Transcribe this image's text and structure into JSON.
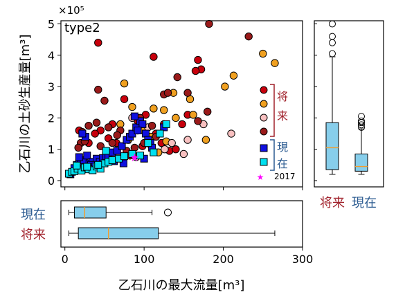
{
  "chart_data": [
    {
      "type": "scatter",
      "panel": "main",
      "annotation": "type2",
      "xlabel": "乙石川の最大流量[m³]",
      "ylabel": "乙石川の土砂生産量[m³]",
      "y_exponent_label": "×10⁵",
      "xlim": [
        -5,
        300
      ],
      "ylim": [
        -0.2,
        5.1
      ],
      "x_ticks": [
        "0",
        "100",
        "200",
        "300"
      ],
      "y_ticks": [
        "0",
        "1",
        "2",
        "3",
        "4",
        "5"
      ],
      "legend": {
        "position": "right",
        "bracket_future": "将来",
        "bracket_present": "現在",
        "marker_2017": "2017"
      },
      "colors": {
        "future": [
          "#c8000c",
          "#f0a020",
          "#f8c0c0",
          "#9a1a1a"
        ],
        "present": [
          "#1010e0",
          "#00e0f0"
        ],
        "marker_2017": "#ff00ff",
        "label_future": "#a0202a",
        "label_present": "#2a5a90"
      },
      "series": [
        {
          "group": "future",
          "color": "#c8000c",
          "points": [
            [
              42,
              4.4
            ],
            [
              18,
              1.6
            ],
            [
              30,
              1.2
            ],
            [
              45,
              1.6
            ],
            [
              60,
              1.8
            ],
            [
              75,
              2.6
            ],
            [
              92,
              1.9
            ],
            [
              102,
              2.1
            ],
            [
              115,
              1.5
            ],
            [
              122,
              1.2
            ],
            [
              132,
              0.95
            ],
            [
              168,
              3.85
            ],
            [
              172,
              3.55
            ],
            [
              155,
              2.1
            ],
            [
              148,
              1.8
            ],
            [
              38,
              1.5
            ],
            [
              55,
              1.35
            ],
            [
              65,
              1.2
            ],
            [
              82,
              0.8
            ],
            [
              98,
              1.1
            ],
            [
              108,
              1.15
            ],
            [
              125,
              1.8
            ],
            [
              140,
              1.0
            ],
            [
              112,
              3.95
            ],
            [
              165,
              3.5
            ]
          ]
        },
        {
          "group": "future",
          "color": "#f0a020",
          "points": [
            [
              75,
              3.1
            ],
            [
              85,
              2.35
            ],
            [
              112,
              2.3
            ],
            [
              137,
              2.8
            ],
            [
              158,
              2.6
            ],
            [
              178,
              1.3
            ],
            [
              202,
              3.0
            ],
            [
              250,
              4.05
            ],
            [
              265,
              3.75
            ],
            [
              92,
              1.6
            ],
            [
              108,
              1.4
            ],
            [
              125,
              2.25
            ],
            [
              70,
              1.8
            ],
            [
              100,
              1.6
            ],
            [
              162,
              2.1
            ],
            [
              118,
              0.9
            ],
            [
              140,
              2.0
            ],
            [
              213,
              3.35
            ],
            [
              80,
              1.3
            ],
            [
              128,
              1.25
            ]
          ]
        },
        {
          "group": "future",
          "color": "#f8c0c0",
          "points": [
            [
              85,
              2.0
            ],
            [
              105,
              1.7
            ],
            [
              135,
              1.2
            ],
            [
              155,
              1.3
            ],
            [
              175,
              1.8
            ],
            [
              210,
              1.5
            ],
            [
              68,
              0.8
            ],
            [
              126,
              1.0
            ],
            [
              150,
              0.85
            ],
            [
              90,
              0.75
            ]
          ]
        },
        {
          "group": "future",
          "color": "#9a1a1a",
          "points": [
            [
              182,
              5.0
            ],
            [
              232,
              4.6
            ],
            [
              180,
              2.2
            ],
            [
              142,
              3.3
            ],
            [
              155,
              2.8
            ],
            [
              168,
              1.9
            ],
            [
              110,
              1.75
            ],
            [
              125,
              2.75
            ],
            [
              130,
              2.8
            ],
            [
              42,
              2.9
            ],
            [
              50,
              2.55
            ],
            [
              40,
              1.85
            ],
            [
              30,
              1.75
            ],
            [
              95,
              2.0
            ],
            [
              70,
              1.6
            ],
            [
              66,
              1.45
            ],
            [
              22,
              1.55
            ],
            [
              115,
              1.4
            ],
            [
              85,
              0.85
            ],
            [
              78,
              0.95
            ],
            [
              60,
              1.2
            ],
            [
              20,
              1.2
            ],
            [
              17,
              1.05
            ],
            [
              25,
              1.25
            ],
            [
              45,
              1.1
            ],
            [
              55,
              1.7
            ],
            [
              100,
              1.2
            ],
            [
              88,
              1.05
            ]
          ]
        },
        {
          "group": "present",
          "color": "#1010e0",
          "points": [
            [
              7,
              0.2
            ],
            [
              12,
              0.4
            ],
            [
              15,
              0.5
            ],
            [
              18,
              0.55
            ],
            [
              20,
              0.6
            ],
            [
              24,
              0.65
            ],
            [
              28,
              0.8
            ],
            [
              31,
              0.55
            ],
            [
              35,
              0.6
            ],
            [
              40,
              0.7
            ],
            [
              44,
              0.6
            ],
            [
              48,
              0.72
            ],
            [
              52,
              0.78
            ],
            [
              55,
              0.8
            ],
            [
              60,
              0.9
            ],
            [
              66,
              0.95
            ],
            [
              72,
              1.1
            ],
            [
              78,
              1.3
            ],
            [
              82,
              1.4
            ],
            [
              85,
              1.5
            ],
            [
              90,
              1.7
            ],
            [
              95,
              1.9
            ],
            [
              98,
              1.8
            ],
            [
              102,
              1.5
            ],
            [
              105,
              1.3
            ],
            [
              108,
              1.2
            ],
            [
              88,
              2.05
            ],
            [
              92,
              1.6
            ],
            [
              26,
              1.4
            ],
            [
              22,
              1.5
            ],
            [
              18,
              0.75
            ],
            [
              33,
              0.5
            ],
            [
              38,
              0.45
            ],
            [
              62,
              0.62
            ],
            [
              74,
              0.55
            ],
            [
              100,
              0.7
            ],
            [
              110,
              1.05
            ],
            [
              125,
              1.7
            ]
          ]
        },
        {
          "group": "present",
          "color": "#00e0f0",
          "points": [
            [
              5,
              0.22
            ],
            [
              9,
              0.28
            ],
            [
              12,
              0.3
            ],
            [
              16,
              0.38
            ],
            [
              21,
              0.32
            ],
            [
              25,
              0.42
            ],
            [
              30,
              0.36
            ],
            [
              35,
              0.33
            ],
            [
              40,
              0.45
            ],
            [
              45,
              0.38
            ],
            [
              50,
              0.55
            ],
            [
              55,
              0.6
            ],
            [
              60,
              0.65
            ],
            [
              68,
              0.7
            ],
            [
              75,
              0.78
            ],
            [
              85,
              0.85
            ],
            [
              95,
              0.8
            ],
            [
              105,
              1.2
            ],
            [
              112,
              0.9
            ],
            [
              120,
              1.5
            ],
            [
              128,
              1.8
            ],
            [
              15,
              0.48
            ],
            [
              28,
              0.44
            ],
            [
              42,
              0.5
            ],
            [
              52,
              0.95
            ]
          ]
        },
        {
          "group": "2017",
          "color": "#ff00ff",
          "points": [
            [
              88,
              0.75
            ]
          ]
        }
      ]
    },
    {
      "type": "box",
      "panel": "right",
      "orientation": "vertical",
      "ylim": [
        -0.2,
        5.1
      ],
      "categories": [
        "将来",
        "現在"
      ],
      "boxes": [
        {
          "name": "将来",
          "whisker_low": 0.2,
          "q1": 0.35,
          "median": 1.05,
          "q3": 1.85,
          "whisker_high": 3.95,
          "outliers": [
            4.05,
            4.4,
            4.6,
            5.0
          ]
        },
        {
          "name": "現在",
          "whisker_low": 0.2,
          "q1": 0.3,
          "median": 0.45,
          "q3": 0.85,
          "whisker_high": 1.65,
          "outliers": [
            1.7,
            1.78,
            1.85,
            1.9,
            2.05
          ]
        }
      ]
    },
    {
      "type": "box",
      "panel": "bottom",
      "orientation": "horizontal",
      "xlim": [
        -5,
        300
      ],
      "categories": [
        "現在",
        "将来"
      ],
      "boxes": [
        {
          "name": "現在",
          "whisker_low": 5,
          "q1": 12,
          "median": 25,
          "q3": 52,
          "whisker_high": 110,
          "outliers": [
            130
          ]
        },
        {
          "name": "将来",
          "whisker_low": 5,
          "q1": 17,
          "median": 55,
          "q3": 118,
          "whisker_high": 265,
          "outliers": []
        }
      ]
    }
  ]
}
